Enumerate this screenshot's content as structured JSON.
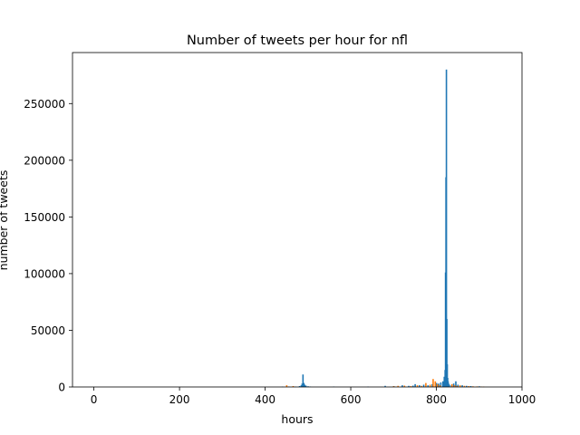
{
  "chart_data": {
    "type": "bar",
    "title": "Number of tweets per hour for nfl",
    "xlabel": "hours",
    "ylabel": "number of tweets",
    "xlim": [
      -50,
      1000
    ],
    "ylim": [
      0,
      295000
    ],
    "xticks": [
      0,
      200,
      400,
      600,
      800,
      1000
    ],
    "yticks": [
      0,
      50000,
      100000,
      150000,
      200000,
      250000
    ],
    "grid": false,
    "colors": {
      "blue": "#1f77b4",
      "orange": "#ff7f0e",
      "green": "#2ca02c"
    },
    "series": [
      {
        "color": "#1f77b4",
        "x": [
          440,
          455,
          470,
          480,
          484,
          486,
          488,
          490,
          492,
          495,
          500,
          505,
          560,
          640,
          680,
          700,
          720,
          735,
          745,
          750,
          760,
          770,
          780,
          790,
          800,
          805,
          810,
          815,
          818,
          820,
          821,
          822,
          823,
          824,
          825,
          826,
          827,
          828,
          830,
          835,
          840,
          845,
          850,
          860,
          870,
          880,
          900
        ],
        "y": [
          300,
          400,
          300,
          800,
          1500,
          3000,
          11000,
          3500,
          2000,
          1200,
          600,
          400,
          400,
          300,
          1000,
          800,
          1500,
          1000,
          1200,
          2500,
          1500,
          2000,
          1500,
          2500,
          3500,
          3000,
          4000,
          5000,
          9000,
          15000,
          101000,
          185000,
          280000,
          60000,
          20000,
          8000,
          5000,
          3000,
          2000,
          1500,
          3000,
          5000,
          2000,
          1500,
          1000,
          800,
          600
        ]
      },
      {
        "color": "#ff7f0e",
        "x": [
          450,
          465,
          700,
          710,
          725,
          740,
          755,
          765,
          775,
          785,
          792,
          797,
          802,
          808,
          836,
          842,
          848,
          855,
          865,
          875,
          885,
          895,
          905,
          910
        ],
        "y": [
          1500,
          800,
          700,
          1000,
          1200,
          800,
          1500,
          1000,
          3500,
          2000,
          7000,
          5000,
          2500,
          1500,
          2500,
          1500,
          1000,
          1500,
          1000,
          800,
          600,
          500,
          400,
          300
        ]
      }
    ]
  }
}
